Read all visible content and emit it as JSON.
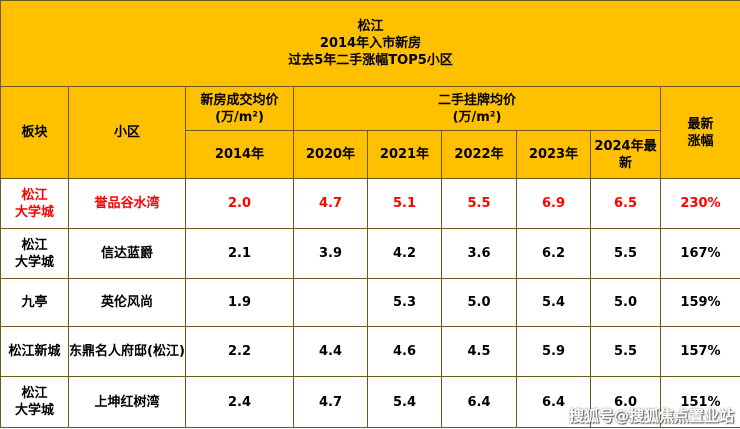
{
  "title": {
    "line1": "松江",
    "line2": "2014年入市新房",
    "line3": "过去5年二手涨幅TOP5小区"
  },
  "header": {
    "block": "板块",
    "community": "小区",
    "new_price_line1": "新房成交均价",
    "new_price_line2": "(万/m²)",
    "second_price_line1": "二手挂牌均价",
    "second_price_line2": "(万/m²)",
    "growth_line1": "最新",
    "growth_line2": "涨幅",
    "year_2014": "2014年",
    "year_2020": "2020年",
    "year_2021": "2021年",
    "year_2022": "2022年",
    "year_2023": "2023年",
    "year_2024_line1": "2024年最",
    "year_2024_line2": "新"
  },
  "rows": [
    {
      "block_line1": "松江",
      "block_line2": "大学城",
      "community": "誉品谷水湾",
      "p2014": "2.0",
      "p2020": "4.7",
      "p2021": "5.1",
      "p2022": "5.5",
      "p2023": "6.9",
      "p2024": "6.5",
      "growth": "230%"
    },
    {
      "block_line1": "松江",
      "block_line2": "大学城",
      "community": "信达蓝爵",
      "p2014": "2.1",
      "p2020": "3.9",
      "p2021": "4.2",
      "p2022": "3.6",
      "p2023": "6.2",
      "p2024": "5.5",
      "growth": "167%"
    },
    {
      "block_line1": "九亭",
      "block_line2": "",
      "community": "英伦风尚",
      "p2014": "1.9",
      "p2020": "",
      "p2021": "5.3",
      "p2022": "5.0",
      "p2023": "5.4",
      "p2024": "5.0",
      "growth": "159%"
    },
    {
      "block_line1": "松江新城",
      "block_line2": "",
      "community": "东鼎名人府邸(松江)",
      "p2014": "2.2",
      "p2020": "4.4",
      "p2021": "4.6",
      "p2022": "4.5",
      "p2023": "5.9",
      "p2024": "5.5",
      "growth": "157%"
    },
    {
      "block_line1": "松江",
      "block_line2": "大学城",
      "community": "上坤红树湾",
      "p2014": "2.4",
      "p2020": "4.7",
      "p2021": "5.4",
      "p2022": "6.4",
      "p2023": "6.4",
      "p2024": "6.0",
      "growth": "151%"
    }
  ],
  "watermark": "搜狐号@搜狐焦点置业站",
  "colors": {
    "header_bg": "#ffc000",
    "highlight_text": "#ff0000",
    "border": "#6b5a1e"
  }
}
